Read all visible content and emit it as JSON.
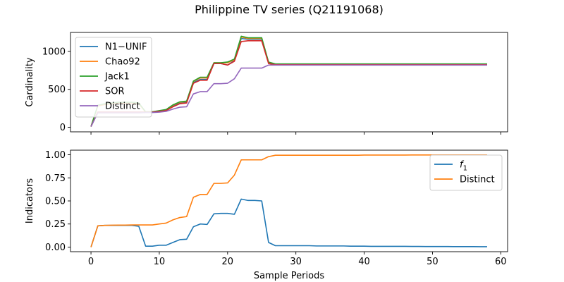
{
  "figure": {
    "title": "Philippine TV series (Q21191068)"
  },
  "chart_data": [
    {
      "type": "line",
      "ylabel": "Cardinality",
      "xlabel": "",
      "xlim": [
        -3,
        61
      ],
      "ylim": [
        -60,
        1250
      ],
      "xticks": [
        0,
        10,
        20,
        30,
        40,
        50,
        60
      ],
      "show_xtick_labels": false,
      "yticks": [
        0,
        500,
        1000
      ],
      "grid": false,
      "legend_position": "upper-left",
      "x": [
        0,
        1,
        2,
        3,
        4,
        5,
        6,
        7,
        8,
        9,
        10,
        11,
        12,
        13,
        14,
        15,
        16,
        17,
        18,
        19,
        20,
        21,
        22,
        23,
        24,
        25,
        26,
        27,
        28,
        29,
        30,
        31,
        32,
        33,
        34,
        35,
        36,
        37,
        38,
        39,
        40,
        41,
        42,
        43,
        44,
        45,
        46,
        47,
        48,
        49,
        50,
        51,
        52,
        53,
        54,
        55,
        56,
        57,
        58
      ],
      "series": [
        {
          "name": "N1−UNIF",
          "color": "#1f77b4",
          "values": [
            10,
            200,
            200,
            200,
            200,
            200,
            200,
            200,
            200,
            200,
            210,
            225,
            280,
            320,
            330,
            590,
            630,
            630,
            840,
            840,
            820,
            880,
            1170,
            1160,
            1160,
            1160,
            850,
            830,
            830,
            830,
            830,
            830,
            830,
            830,
            830,
            830,
            830,
            830,
            830,
            830,
            830,
            830,
            830,
            830,
            830,
            830,
            830,
            830,
            830,
            830,
            830,
            830,
            830,
            830,
            830,
            830,
            830,
            830,
            830
          ]
        },
        {
          "name": "Chao92",
          "color": "#ff7f0e",
          "values": [
            10,
            280,
            300,
            310,
            320,
            320,
            320,
            310,
            200,
            200,
            215,
            230,
            290,
            330,
            340,
            605,
            650,
            650,
            850,
            850,
            850,
            890,
            1190,
            1170,
            1170,
            1170,
            850,
            830,
            830,
            830,
            830,
            830,
            830,
            830,
            830,
            830,
            830,
            830,
            830,
            830,
            830,
            830,
            830,
            830,
            830,
            830,
            830,
            830,
            830,
            830,
            830,
            830,
            830,
            830,
            830,
            830,
            830,
            830,
            830
          ]
        },
        {
          "name": "Jack1",
          "color": "#2ca02c",
          "values": [
            10,
            290,
            310,
            320,
            330,
            330,
            330,
            320,
            205,
            205,
            220,
            235,
            295,
            335,
            345,
            610,
            660,
            660,
            850,
            850,
            860,
            900,
            1200,
            1180,
            1180,
            1180,
            860,
            835,
            835,
            835,
            835,
            835,
            835,
            835,
            835,
            835,
            835,
            835,
            835,
            835,
            835,
            835,
            835,
            835,
            835,
            835,
            835,
            835,
            835,
            835,
            835,
            835,
            835,
            835,
            835,
            835,
            835,
            835,
            835
          ]
        },
        {
          "name": "SOR",
          "color": "#d62728",
          "values": [
            10,
            200,
            200,
            200,
            200,
            200,
            200,
            200,
            200,
            200,
            210,
            220,
            270,
            310,
            320,
            580,
            620,
            620,
            840,
            840,
            820,
            870,
            1130,
            1140,
            1140,
            1140,
            840,
            825,
            825,
            825,
            825,
            825,
            825,
            825,
            825,
            825,
            825,
            825,
            825,
            825,
            825,
            825,
            825,
            825,
            825,
            825,
            825,
            825,
            825,
            825,
            825,
            825,
            825,
            825,
            825,
            825,
            825,
            825,
            825
          ]
        },
        {
          "name": "Distinct",
          "color": "#9467bd",
          "values": [
            10,
            190,
            190,
            190,
            190,
            190,
            190,
            190,
            195,
            195,
            200,
            210,
            240,
            265,
            270,
            440,
            470,
            470,
            575,
            575,
            580,
            640,
            780,
            780,
            780,
            780,
            820,
            820,
            820,
            820,
            820,
            820,
            820,
            820,
            820,
            820,
            820,
            820,
            820,
            820,
            820,
            820,
            820,
            820,
            820,
            820,
            820,
            820,
            820,
            820,
            820,
            820,
            820,
            820,
            820,
            820,
            820,
            820,
            820
          ]
        }
      ]
    },
    {
      "type": "line",
      "ylabel": "Indicators",
      "xlabel": "Sample Periods",
      "xlim": [
        -3,
        61
      ],
      "ylim": [
        -0.05,
        1.05
      ],
      "xticks": [
        0,
        10,
        20,
        30,
        40,
        50,
        60
      ],
      "show_xtick_labels": true,
      "yticks": [
        0.0,
        0.25,
        0.5,
        0.75,
        1.0
      ],
      "ytick_labels": [
        "0.00",
        "0.25",
        "0.50",
        "0.75",
        "1.00"
      ],
      "grid": false,
      "legend_position": "upper-right",
      "x": [
        0,
        1,
        2,
        3,
        4,
        5,
        6,
        7,
        8,
        9,
        10,
        11,
        12,
        13,
        14,
        15,
        16,
        17,
        18,
        19,
        20,
        21,
        22,
        23,
        24,
        25,
        26,
        27,
        28,
        29,
        30,
        31,
        32,
        33,
        34,
        35,
        36,
        37,
        38,
        39,
        40,
        41,
        42,
        43,
        44,
        45,
        46,
        47,
        48,
        49,
        50,
        51,
        52,
        53,
        54,
        55,
        56,
        57,
        58
      ],
      "series": [
        {
          "name": "f1",
          "color": "#1f77b4",
          "values": [
            0.0,
            0.23,
            0.235,
            0.235,
            0.235,
            0.235,
            0.235,
            0.225,
            0.01,
            0.01,
            0.02,
            0.02,
            0.05,
            0.08,
            0.085,
            0.22,
            0.25,
            0.245,
            0.36,
            0.365,
            0.365,
            0.355,
            0.52,
            0.505,
            0.505,
            0.5,
            0.05,
            0.015,
            0.015,
            0.015,
            0.015,
            0.015,
            0.015,
            0.012,
            0.012,
            0.012,
            0.012,
            0.012,
            0.01,
            0.01,
            0.01,
            0.008,
            0.008,
            0.008,
            0.008,
            0.008,
            0.008,
            0.007,
            0.007,
            0.006,
            0.006,
            0.006,
            0.006,
            0.005,
            0.005,
            0.005,
            0.005,
            0.004,
            0.004
          ]
        },
        {
          "name": "Distinct",
          "color": "#ff7f0e",
          "values": [
            0.0,
            0.23,
            0.235,
            0.237,
            0.238,
            0.238,
            0.24,
            0.24,
            0.24,
            0.24,
            0.25,
            0.26,
            0.295,
            0.32,
            0.33,
            0.54,
            0.57,
            0.57,
            0.69,
            0.69,
            0.695,
            0.78,
            0.945,
            0.945,
            0.945,
            0.945,
            0.98,
            0.995,
            0.995,
            0.995,
            0.995,
            0.995,
            0.995,
            0.995,
            0.995,
            0.995,
            0.995,
            0.995,
            0.995,
            0.995,
            0.997,
            0.997,
            0.997,
            0.997,
            0.997,
            0.997,
            0.997,
            0.998,
            0.998,
            0.998,
            0.998,
            0.998,
            0.998,
            0.998,
            0.998,
            0.998,
            0.998,
            0.998,
            0.998
          ]
        }
      ]
    }
  ]
}
